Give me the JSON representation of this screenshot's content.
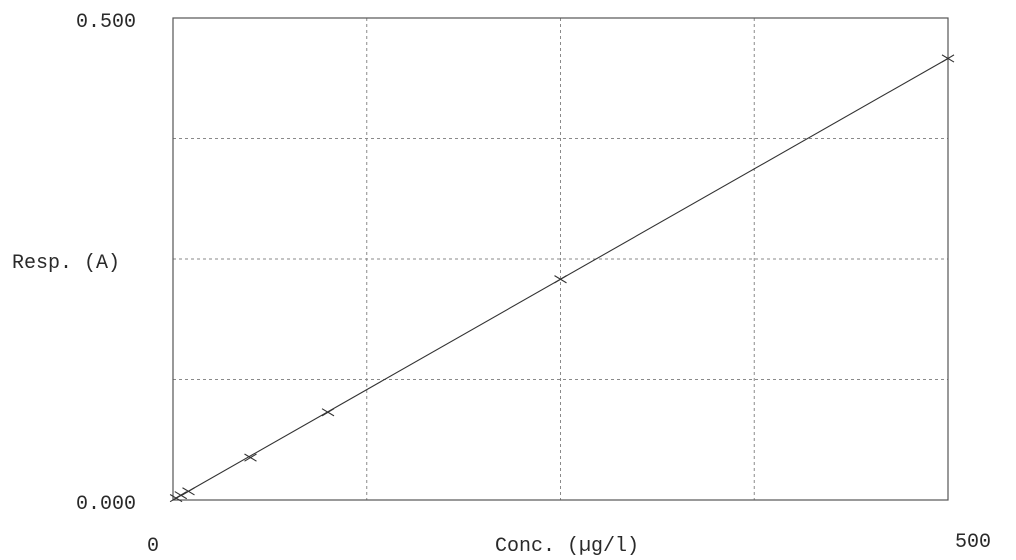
{
  "chart_data": {
    "type": "scatter",
    "title": "",
    "xlabel": "Conc. (µg/l)",
    "ylabel": "Resp. (A)",
    "xlim": [
      0,
      500
    ],
    "ylim": [
      0,
      0.5
    ],
    "x_tick_labels": [
      "0",
      "500"
    ],
    "y_tick_labels": [
      "0.500",
      "0.000"
    ],
    "grid": true,
    "legend": "none",
    "series": [
      {
        "marker": "x",
        "x": [
          2,
          5,
          10,
          50,
          100,
          250,
          500
        ],
        "y": [
          0.002,
          0.005,
          0.009,
          0.044,
          0.091,
          0.229,
          0.458
        ]
      }
    ],
    "fit_line": {
      "x": [
        0,
        500
      ],
      "y": [
        0.0,
        0.458
      ]
    },
    "colors": {
      "line": "#333333",
      "grid": "#8a8a8a",
      "frame": "#555555"
    }
  }
}
